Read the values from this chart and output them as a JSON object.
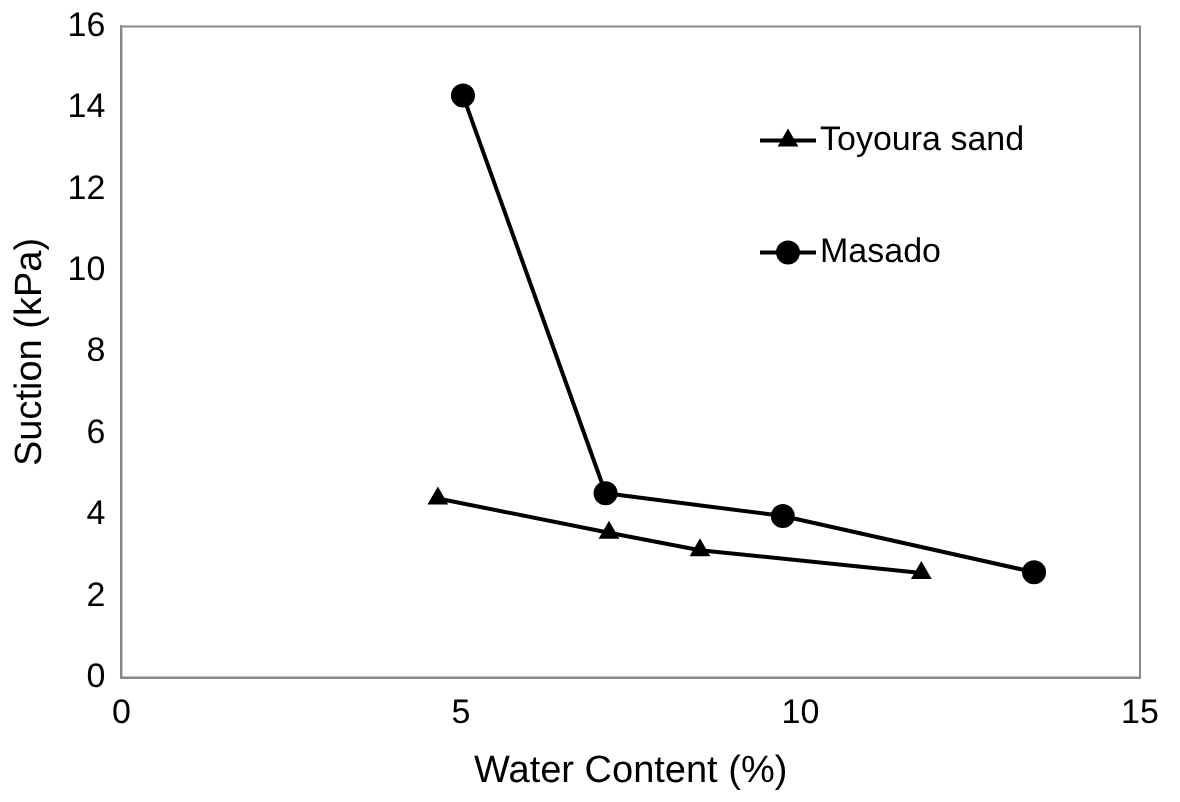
{
  "chart_data": {
    "type": "line",
    "xlabel": "Water Content (%)",
    "ylabel": "Suction (kPa)",
    "xlim": [
      0,
      15
    ],
    "xticks": [
      0,
      5,
      10,
      15
    ],
    "ylim": [
      0,
      16
    ],
    "yticks": [
      0,
      2,
      4,
      6,
      8,
      10,
      12,
      14,
      16
    ],
    "grid": false,
    "legend": "top right",
    "line_style": "solid",
    "series": [
      {
        "name": "Toyoura sand",
        "color": "#000000",
        "marker": "triangle",
        "x": [
          4.66,
          7.18,
          8.52,
          11.78
        ],
        "values": [
          4.4,
          3.56,
          3.13,
          2.57
        ]
      },
      {
        "name": "Masado",
        "color": "#000000",
        "marker": "circle",
        "x": [
          5.03,
          7.13,
          9.74,
          13.44
        ],
        "values": [
          14.3,
          4.53,
          3.97,
          2.59
        ]
      }
    ]
  }
}
